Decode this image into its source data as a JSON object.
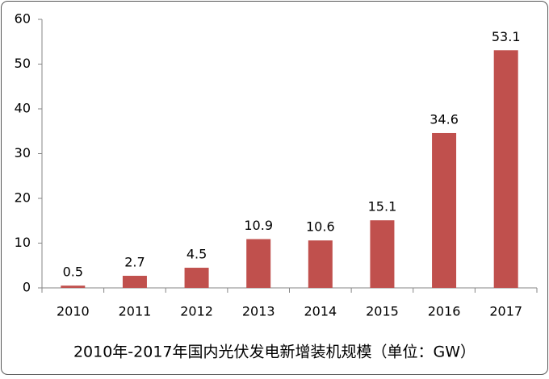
{
  "chart_data": {
    "type": "bar",
    "title": "2010年-2017年国内光伏发电新增装机规模（单位：GW）",
    "categories": [
      "2010",
      "2011",
      "2012",
      "2013",
      "2014",
      "2015",
      "2016",
      "2017"
    ],
    "values": [
      0.5,
      2.7,
      4.5,
      10.9,
      10.6,
      15.1,
      34.6,
      53.1
    ],
    "color": "#c0504d",
    "ylim": [
      0,
      60
    ],
    "yticks": [
      0,
      10,
      20,
      30,
      40,
      50,
      60
    ],
    "grid": false
  }
}
